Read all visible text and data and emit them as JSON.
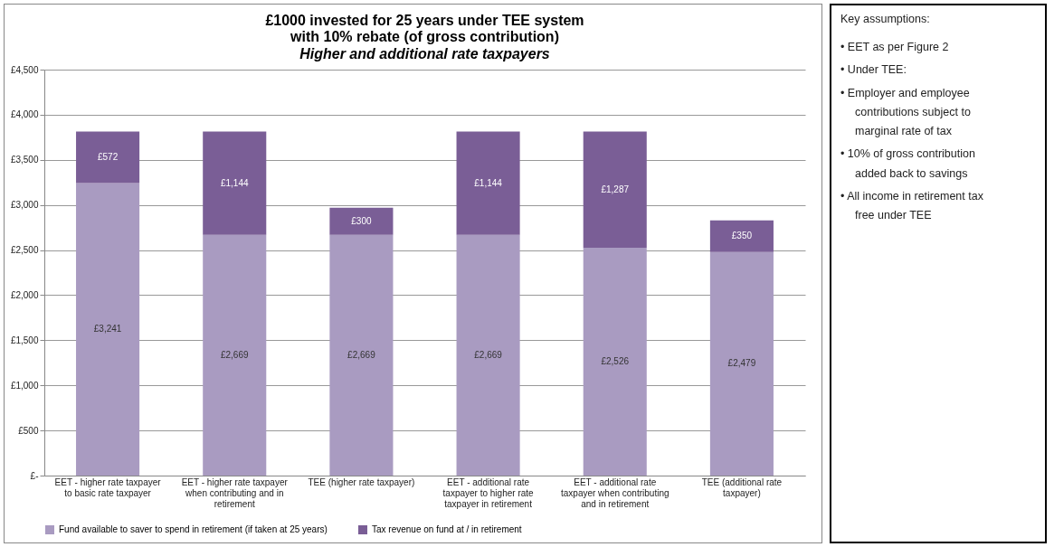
{
  "chart_data": [
    {
      "type": "bar",
      "title": "£1000 invested for 25 years under TEE system with 10% rebate (of gross contribution)",
      "subtitle": "Higher and additional rate taxpayers",
      "categories": [
        "EET - higher rate taxpayer to basic rate taxpayer",
        "EET - higher rate taxpayer when contributing and in retirement",
        "TEE (higher rate taxpayer)",
        "EET - additional rate taxpayer to higher rate taxpayer in retirement",
        "EET - additional rate taxpayer when contributing and in retirement",
        "TEE (additional rate taxpayer)"
      ],
      "series": [
        {
          "name": "Fund available to saver to spend in retirement (if taken  at 25 years)",
          "color": "#a99bc1",
          "values": [
            3241,
            2669,
            2669,
            2669,
            2526,
            2479
          ],
          "value_labels": [
            "£3,241",
            "£2,669",
            "£2,669",
            "£2,669",
            "£2,526",
            "£2,479"
          ]
        },
        {
          "name": "Tax revenue on fund at / in retirement",
          "color": "#7a5e96",
          "values": [
            572,
            1144,
            300,
            1144,
            1287,
            350
          ],
          "value_labels": [
            "£572",
            "£1,144",
            "£300",
            "£1,144",
            "£1,287",
            "£350"
          ]
        }
      ],
      "stacked": true,
      "grid": "y",
      "legend": "bottom",
      "ylim": [
        0,
        4500
      ],
      "yticks": [
        {
          "value": 0,
          "label": "£-"
        },
        {
          "value": 500,
          "label": "£500"
        },
        {
          "value": 1000,
          "label": "£1,000"
        },
        {
          "value": 1500,
          "label": "£1,500"
        },
        {
          "value": 2000,
          "label": "£2,000"
        },
        {
          "value": 2500,
          "label": "£2,500"
        },
        {
          "value": 3000,
          "label": "£3,000"
        },
        {
          "value": 3500,
          "label": "£3,500"
        },
        {
          "value": 4000,
          "label": "£4,000"
        },
        {
          "value": 4500,
          "label": "£4,500"
        }
      ]
    },
    {
      "type": "other",
      "title": "Key assumptions:",
      "annotations": [
        "• EET as per Figure 2",
        "• Under TEE:",
        "• Employer and employee contributions subject to marginal rate of tax",
        "• 10% of gross contribution added back to savings",
        "• All income in retirement tax free under TEE"
      ]
    }
  ]
}
